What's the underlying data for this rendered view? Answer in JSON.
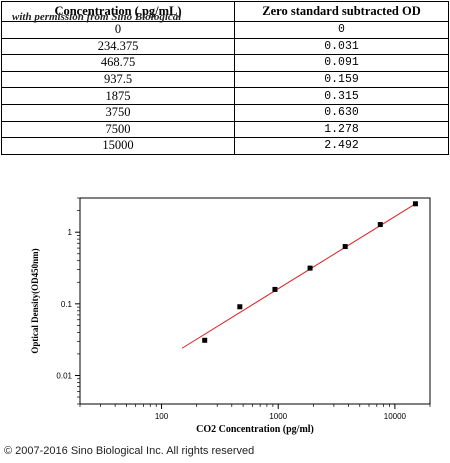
{
  "table": {
    "headers": [
      "Concentration ( pg/mL)",
      "Zero standard subtracted OD"
    ],
    "watermark": "with permission from Sino Biological",
    "rows": [
      [
        "0",
        "0"
      ],
      [
        "234.375",
        "0.031"
      ],
      [
        "468.75",
        "0.091"
      ],
      [
        "937.5",
        "0.159"
      ],
      [
        "1875",
        "0.315"
      ],
      [
        "3750",
        "0.630"
      ],
      [
        "7500",
        "1.278"
      ],
      [
        "15000",
        "2.492"
      ]
    ]
  },
  "chart_data": {
    "type": "scatter",
    "xlabel": "CO2 Concentration (pg/ml)",
    "ylabel": "Optical Density(OD450nm)",
    "xscale": "log",
    "yscale": "log",
    "xlim": [
      20,
      20000
    ],
    "ylim": [
      0.004,
      3
    ],
    "xticks": [
      {
        "v": 100,
        "label": "100"
      },
      {
        "v": 1000,
        "label": "1000"
      },
      {
        "v": 10000,
        "label": "10000"
      }
    ],
    "yticks": [
      {
        "v": 0.01,
        "label": "0.01"
      },
      {
        "v": 0.1,
        "label": "0.1"
      },
      {
        "v": 1,
        "label": "1"
      }
    ],
    "series": [
      {
        "x": [
          234.375,
          468.75,
          937.5,
          1875,
          3750,
          7500,
          15000
        ],
        "y": [
          0.031,
          0.091,
          0.159,
          0.315,
          0.63,
          1.278,
          2.492
        ],
        "color": "#000000"
      }
    ],
    "fit_line": {
      "x": [
        150,
        15000
      ],
      "y": [
        0.024,
        2.49
      ],
      "color": "#e02020"
    }
  },
  "footer": "© 2007-2016 Sino Biological Inc. All rights reserved"
}
